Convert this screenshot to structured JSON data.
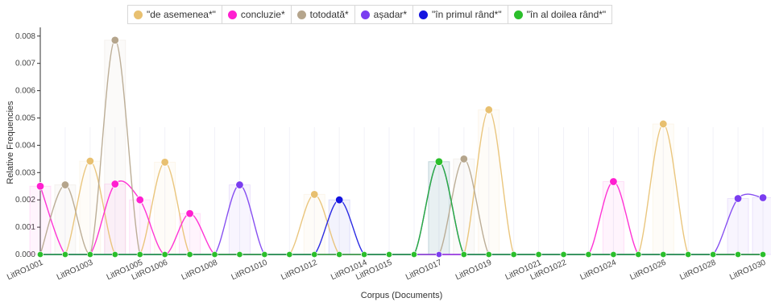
{
  "chart_data": {
    "type": "line",
    "xlabel": "Corpus (Documents)",
    "ylabel": "Relative Frequencies",
    "ylim": [
      0,
      0.0082
    ],
    "yticks": [
      "0.000",
      "0.001",
      "0.002",
      "0.003",
      "0.004",
      "0.005",
      "0.006",
      "0.007",
      "0.008"
    ],
    "ytick_values": [
      0,
      0.001,
      0.002,
      0.003,
      0.004,
      0.005,
      0.006,
      0.007,
      0.008
    ],
    "x": [
      "LitRO1001",
      "LitRO1002",
      "LitRO1003",
      "LitRO1004",
      "LitRO1005",
      "LitRO1006",
      "LitRO1007",
      "LitRO1008",
      "LitRO1009",
      "LitRO1010",
      "LitRO1011",
      "LitRO1012",
      "LitRO1013",
      "LitRO1014",
      "LitRO1015",
      "LitRO1016",
      "LitRO1017",
      "LitRO1018",
      "LitRO1019",
      "LitRO1020",
      "LitRO1021",
      "LitRO1022",
      "LitRO1023",
      "LitRO1024",
      "LitRO1025",
      "LitRO1026",
      "LitRO1027",
      "LitRO1028",
      "LitRO1029",
      "LitRO1030"
    ],
    "xtick_labels": [
      "LitRO1001",
      "",
      "LitRO1003",
      "",
      "LitRO1005",
      "LitRO1006",
      "",
      "LitRO1008",
      "",
      "LitRO1010",
      "",
      "LitRO1012",
      "",
      "LitRO1014",
      "LitRO1015",
      "",
      "LitRO1017",
      "",
      "LitRO1019",
      "",
      "LitRO1021",
      "LitRO1022",
      "",
      "LitRO1024",
      "",
      "LitRO1026",
      "",
      "LitRO1028",
      "",
      "LitRO1030"
    ],
    "series": [
      {
        "name": "\"de asemenea*\"",
        "color": "#e8c070",
        "values": [
          0,
          0,
          0.00342,
          0,
          0,
          0.00338,
          0,
          0,
          0,
          0,
          0,
          0.0022,
          0,
          0,
          0,
          0,
          0,
          0,
          0.0053,
          0,
          0,
          0,
          0,
          0,
          0,
          0.00478,
          0,
          0,
          0,
          0
        ]
      },
      {
        "name": "concluzie*",
        "color": "#ff1fd0",
        "values": [
          0.0025,
          0,
          0,
          0.00258,
          0.002,
          0,
          0.0015,
          0,
          0,
          0,
          0,
          0,
          0,
          0,
          0,
          0,
          0,
          0,
          0,
          0,
          0,
          0,
          0,
          0.00267,
          0,
          0,
          0,
          0,
          0,
          0
        ]
      },
      {
        "name": "totodată*",
        "color": "#b5a58c",
        "values": [
          0,
          0.00255,
          0,
          0.00785,
          0,
          0,
          0,
          0,
          0,
          0,
          0,
          0,
          0,
          0,
          0,
          0,
          0,
          0.0035,
          0,
          0,
          0,
          0,
          0,
          0,
          0,
          0,
          0,
          0,
          0,
          0
        ]
      },
      {
        "name": "așadar*",
        "color": "#7a3df0",
        "values": [
          0,
          0,
          0,
          0,
          0,
          0,
          0,
          0,
          0.00255,
          0,
          0,
          0,
          0,
          0,
          0,
          0,
          0,
          0,
          0,
          0,
          0,
          0,
          0,
          0,
          0,
          0,
          0,
          0,
          0.00205,
          0.00208
        ]
      },
      {
        "name": "\"în primul rând*\"",
        "color": "#1414e0",
        "values": [
          0,
          0,
          0,
          0,
          0,
          0,
          0,
          0,
          0,
          0,
          0,
          0,
          0.002,
          0,
          0,
          0,
          0.0034,
          0,
          0,
          0,
          0,
          0,
          0,
          0,
          0,
          0,
          0,
          0,
          0,
          0
        ]
      },
      {
        "name": "\"în al doilea rând*\"",
        "color": "#2bbf2b",
        "values": [
          0,
          0,
          0,
          0,
          0,
          0,
          0,
          0,
          0,
          0,
          0,
          0,
          0,
          0,
          0,
          0,
          0.0034,
          0,
          0,
          0,
          0,
          0,
          0,
          0,
          0,
          0,
          0,
          0,
          0,
          0
        ]
      }
    ],
    "grid": false,
    "legend_position": "top"
  }
}
